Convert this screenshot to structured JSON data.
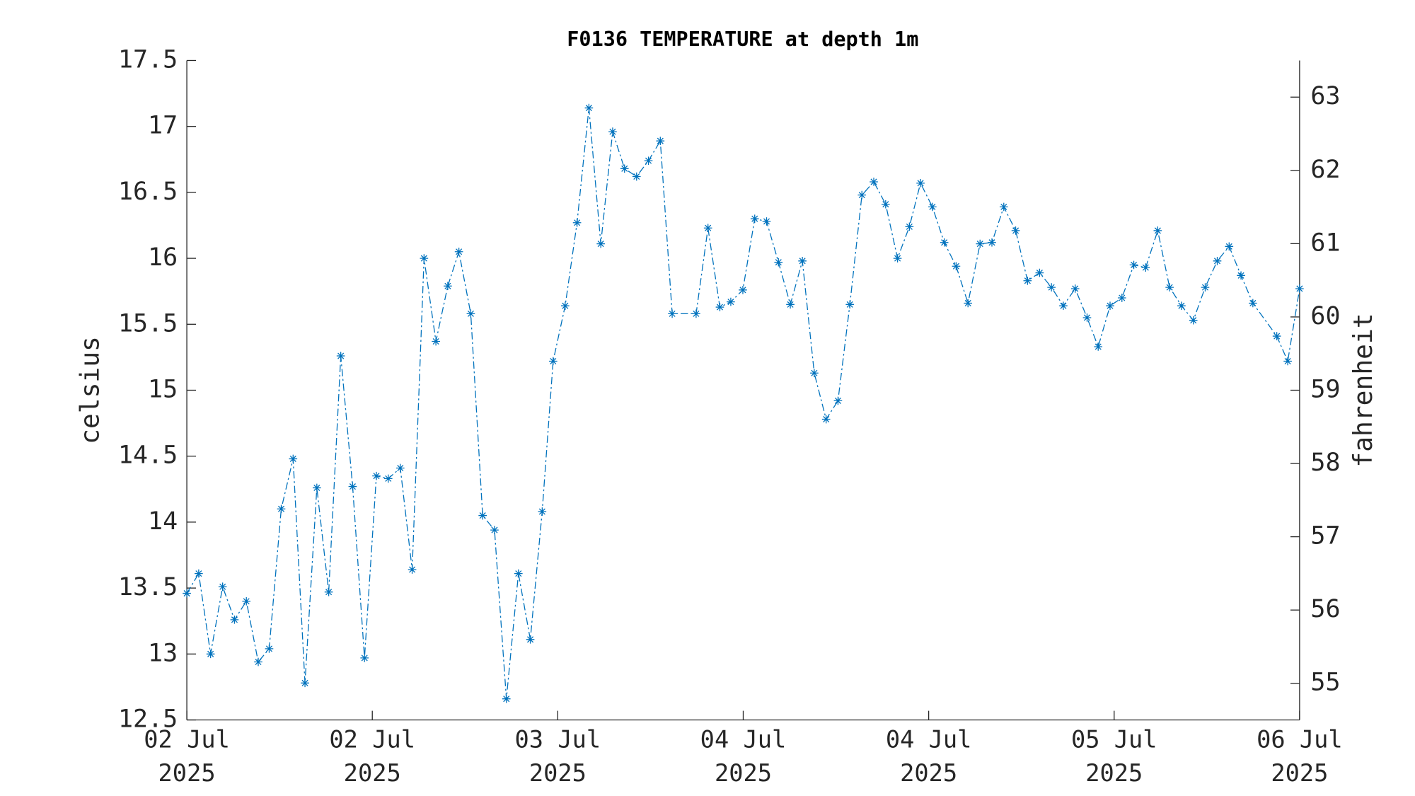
{
  "chart_data": {
    "type": "line",
    "title": "F0136 TEMPERATURE at depth 1m",
    "y_label": "celsius",
    "y2_label": "fahrenheit",
    "xlim": [
      0,
      6
    ],
    "xticks": [
      {
        "value": 0,
        "label": "02 Jul\n2025"
      },
      {
        "value": 1,
        "label": "02 Jul\n2025"
      },
      {
        "value": 2,
        "label": "03 Jul\n2025"
      },
      {
        "value": 3,
        "label": "04 Jul\n2025"
      },
      {
        "value": 4,
        "label": "04 Jul\n2025"
      },
      {
        "value": 5,
        "label": "05 Jul\n2025"
      },
      {
        "value": 6,
        "label": "06 Jul\n2025"
      }
    ],
    "ylim": [
      12.5,
      17.5
    ],
    "yticks": [
      12.5,
      13,
      13.5,
      14,
      14.5,
      15,
      15.5,
      16,
      16.5,
      17,
      17.5
    ],
    "y2lim": [
      54.5,
      63.5
    ],
    "y2ticks": [
      55,
      56,
      57,
      58,
      59,
      60,
      61,
      62,
      63
    ],
    "series": [
      {
        "name": "temperature",
        "color": "#0072BD",
        "x": [
          0,
          0.064,
          0.128,
          0.193,
          0.257,
          0.321,
          0.385,
          0.444,
          0.509,
          0.573,
          0.637,
          0.701,
          0.765,
          0.83,
          0.894,
          0.958,
          1.022,
          1.086,
          1.151,
          1.215,
          1.279,
          1.343,
          1.407,
          1.467,
          1.531,
          1.595,
          1.659,
          1.723,
          1.788,
          1.852,
          1.916,
          1.975,
          2.04,
          2.104,
          2.168,
          2.232,
          2.296,
          2.36,
          2.425,
          2.489,
          2.553,
          2.617,
          2.746,
          2.81,
          2.874,
          2.933,
          2.998,
          3.062,
          3.126,
          3.19,
          3.254,
          3.319,
          3.383,
          3.447,
          3.511,
          3.575,
          3.64,
          3.704,
          3.768,
          3.832,
          3.896,
          3.956,
          4.02,
          4.084,
          4.148,
          4.212,
          4.277,
          4.341,
          4.405,
          4.469,
          4.533,
          4.598,
          4.662,
          4.726,
          4.79,
          4.854,
          4.914,
          4.978,
          5.042,
          5.106,
          5.17,
          5.235,
          5.299,
          5.363,
          5.427,
          5.491,
          5.556,
          5.62,
          5.684,
          5.748,
          5.877,
          5.936,
          6.0
        ],
        "values": [
          13.46,
          13.61,
          13.0,
          13.51,
          13.26,
          13.4,
          12.94,
          13.04,
          14.1,
          14.48,
          12.78,
          14.26,
          13.47,
          15.26,
          14.27,
          12.97,
          14.35,
          14.33,
          14.41,
          13.64,
          16.0,
          15.37,
          15.79,
          16.05,
          15.58,
          14.05,
          13.94,
          12.66,
          13.61,
          13.11,
          14.08,
          15.22,
          15.64,
          16.27,
          17.14,
          16.11,
          16.96,
          16.68,
          16.62,
          16.74,
          16.89,
          15.58,
          15.58,
          16.23,
          15.63,
          15.67,
          15.76,
          16.3,
          16.28,
          15.97,
          15.65,
          15.98,
          15.13,
          14.78,
          14.92,
          15.65,
          16.48,
          16.58,
          16.41,
          16.0,
          16.24,
          16.57,
          16.39,
          16.12,
          15.94,
          15.66,
          16.11,
          16.12,
          16.39,
          16.21,
          15.83,
          15.89,
          15.78,
          15.64,
          15.77,
          15.55,
          15.33,
          15.64,
          15.7,
          15.95,
          15.93,
          16.21,
          15.78,
          15.64,
          15.53,
          15.78,
          15.98,
          16.09,
          15.87,
          15.66,
          15.41,
          15.22,
          15.77
        ]
      }
    ]
  }
}
